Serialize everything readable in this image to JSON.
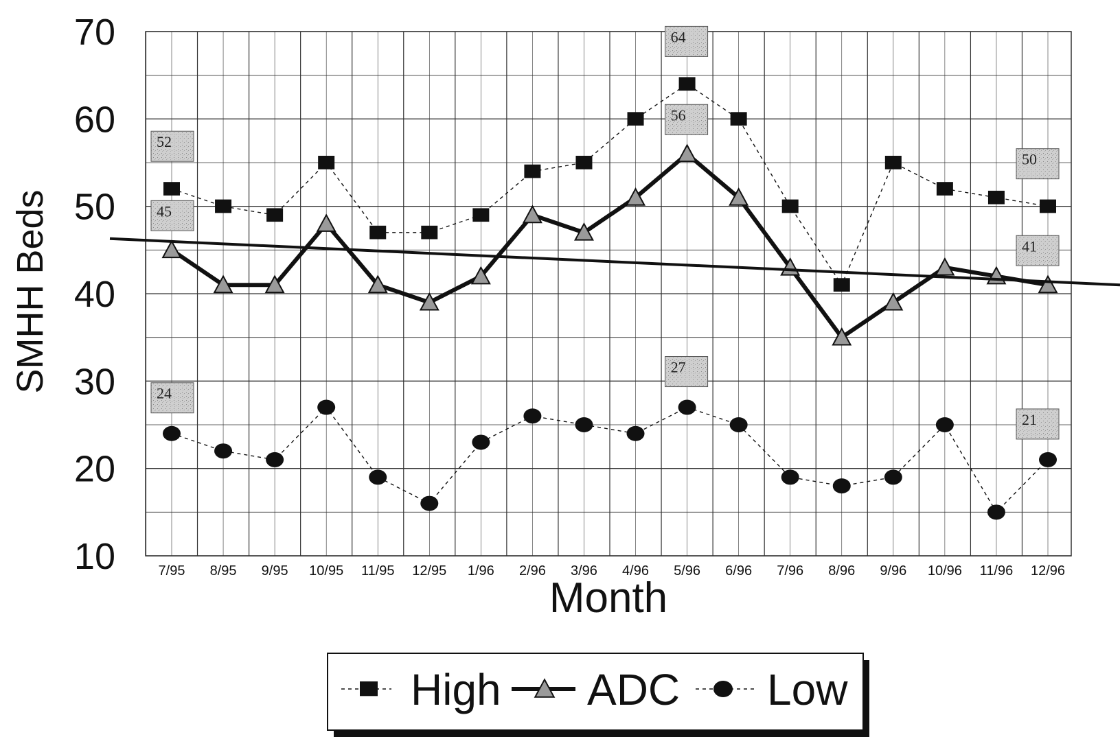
{
  "chart_data": {
    "type": "line",
    "xlabel": "Month",
    "ylabel": "SMHH Beds",
    "ylim": [
      10,
      70
    ],
    "yticks": [
      10,
      20,
      30,
      40,
      50,
      60,
      70
    ],
    "grid": true,
    "legend_position": "bottom-center",
    "categories": [
      "7/95",
      "8/95",
      "9/95",
      "10/95",
      "11/95",
      "12/95",
      "1/96",
      "2/96",
      "3/96",
      "4/96",
      "5/96",
      "6/96",
      "7/96",
      "8/96",
      "9/96",
      "10/96",
      "11/96",
      "12/96"
    ],
    "series": [
      {
        "name": "High",
        "marker": "square",
        "line": "dashed",
        "values": [
          52,
          50,
          49,
          55,
          47,
          47,
          49,
          54,
          55,
          60,
          64,
          60,
          50,
          41,
          55,
          52,
          51,
          50
        ]
      },
      {
        "name": "ADC",
        "marker": "triangle",
        "line": "solid-thick",
        "values": [
          45,
          41,
          41,
          48,
          41,
          39,
          42,
          49,
          47,
          51,
          56,
          51,
          43,
          35,
          39,
          43,
          42,
          41
        ]
      },
      {
        "name": "Low",
        "marker": "circle",
        "line": "dashed",
        "values": [
          24,
          22,
          21,
          27,
          19,
          16,
          23,
          26,
          25,
          24,
          27,
          25,
          19,
          18,
          19,
          25,
          15,
          21
        ]
      }
    ],
    "trendline": {
      "series": "ADC",
      "start_value": 46.3,
      "end_value": 41.0
    },
    "annotations": [
      {
        "text": "52",
        "category": "7/95",
        "series": "High"
      },
      {
        "text": "45",
        "category": "7/95",
        "series": "ADC"
      },
      {
        "text": "24",
        "category": "7/95",
        "series": "Low"
      },
      {
        "text": "64",
        "category": "5/96",
        "series": "High"
      },
      {
        "text": "56",
        "category": "5/96",
        "series": "ADC"
      },
      {
        "text": "27",
        "category": "5/96",
        "series": "Low"
      },
      {
        "text": "50",
        "category": "12/96",
        "series": "High"
      },
      {
        "text": "41",
        "category": "12/96",
        "series": "ADC"
      },
      {
        "text": "21",
        "category": "12/96",
        "series": "Low"
      }
    ]
  },
  "colors": {
    "line": "#111111",
    "grid": "#333333",
    "callout_fill": "#c8c8c8",
    "triangle_fill": "#9a9a9a"
  }
}
